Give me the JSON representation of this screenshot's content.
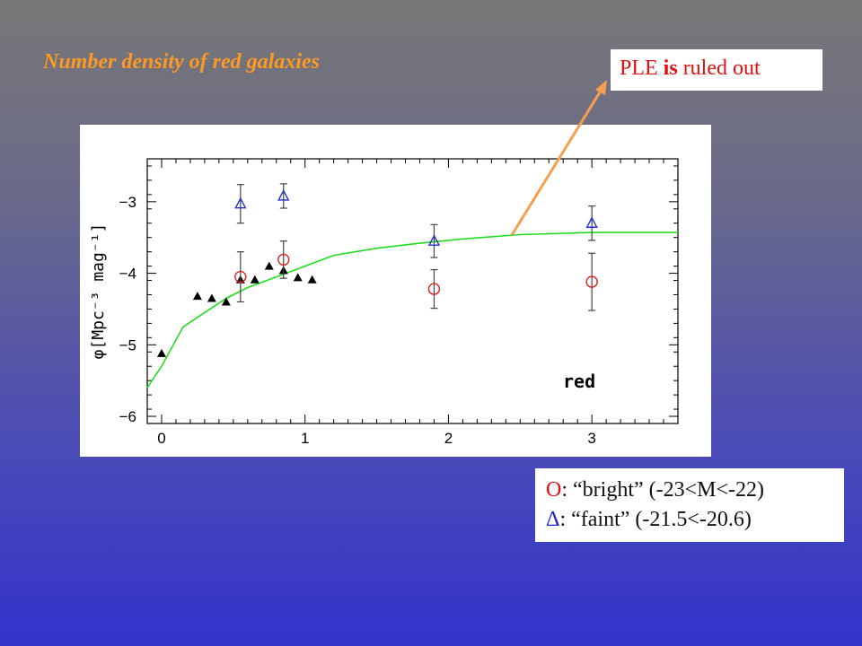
{
  "slide": {
    "title": "Number density of red galaxies",
    "callout": {
      "part1": "PLE ",
      "emph": "is",
      "part2": " ruled out"
    },
    "legend": [
      {
        "symbol": "O",
        "text": ": “bright” (-23<M<-22)",
        "symbol_color": "#e01010"
      },
      {
        "symbol": "Δ",
        "text": ": “faint” (-21.5<-20.6)",
        "symbol_color": "#2222cc"
      }
    ],
    "colors": {
      "title": "#ff9922",
      "arrow": "#f5a050",
      "callout_text": "#e01010"
    }
  },
  "chart_data": {
    "type": "scatter",
    "annotation": "red",
    "ylabel": "φ[Mpc⁻³ mag⁻¹]",
    "xlabel": "",
    "xlim": [
      -0.1,
      3.6
    ],
    "ylim": [
      -6.1,
      -2.4
    ],
    "xticks": [
      0,
      1,
      2,
      3
    ],
    "yticks": [
      -6,
      -5,
      -4,
      -3
    ],
    "xtick_labels": [
      "0",
      "1",
      "2",
      "3"
    ],
    "ytick_labels": [
      "−6",
      "−5",
      "−4",
      "−3"
    ],
    "grid": false,
    "series": [
      {
        "marker": "triangle-filled",
        "color": "#000000",
        "points": [
          [
            0,
            -5.12
          ],
          [
            0.25,
            -4.32
          ],
          [
            0.35,
            -4.35
          ],
          [
            0.45,
            -4.4
          ],
          [
            0.55,
            -4.09
          ],
          [
            0.65,
            -4.09
          ],
          [
            0.75,
            -3.9
          ],
          [
            0.85,
            -3.96
          ],
          [
            0.95,
            -4.06
          ],
          [
            1.05,
            -4.09
          ]
        ]
      },
      {
        "marker": "circle-open",
        "color": "#e02020",
        "points": [
          [
            0.55,
            -4.05,
            0.35
          ],
          [
            0.85,
            -3.81,
            0.26
          ],
          [
            1.9,
            -4.22,
            0.27
          ],
          [
            3.0,
            -4.12,
            0.4
          ]
        ]
      },
      {
        "marker": "triangle-open",
        "color": "#2030d0",
        "points": [
          [
            0.55,
            -3.03,
            0.27
          ],
          [
            0.85,
            -2.92,
            0.17
          ],
          [
            1.9,
            -3.55,
            0.23
          ],
          [
            3.0,
            -3.3,
            0.24
          ]
        ]
      },
      {
        "line": true,
        "color": "#22dd22",
        "points": [
          [
            -0.1,
            -5.6
          ],
          [
            0,
            -5.3
          ],
          [
            0.15,
            -4.75
          ],
          [
            0.3,
            -4.55
          ],
          [
            0.45,
            -4.35
          ],
          [
            0.6,
            -4.2
          ],
          [
            0.8,
            -4.05
          ],
          [
            1.0,
            -3.9
          ],
          [
            1.2,
            -3.75
          ],
          [
            1.5,
            -3.65
          ],
          [
            1.8,
            -3.58
          ],
          [
            2.1,
            -3.52
          ],
          [
            2.5,
            -3.46
          ],
          [
            3.0,
            -3.43
          ],
          [
            3.6,
            -3.43
          ]
        ]
      }
    ]
  }
}
